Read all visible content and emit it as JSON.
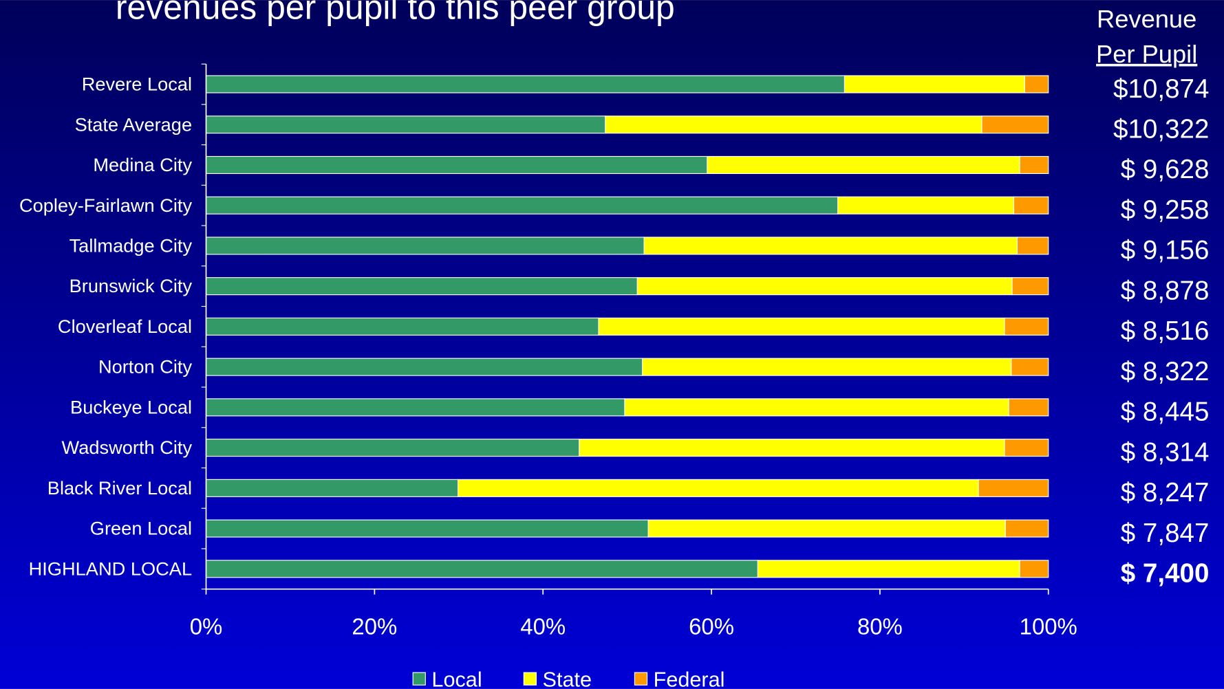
{
  "chart_data": {
    "type": "stacked_bar_horizontal",
    "title": "revenues per pupil to this peer group",
    "categories": [
      "Revere Local",
      "State Average",
      "Medina City",
      "Copley-Fairlawn City",
      "Tallmadge City",
      "Brunswick City",
      "Cloverleaf Local",
      "Norton City",
      "Buckeye Local",
      "Wadsworth City",
      "Black River Local",
      "Green Local",
      "HIGHLAND LOCAL"
    ],
    "series": [
      {
        "name": "Local",
        "color": "#339966",
        "values": [
          75.8,
          47.4,
          59.5,
          75.0,
          52.0,
          51.2,
          46.6,
          51.8,
          49.7,
          44.3,
          29.9,
          52.5,
          65.5
        ]
      },
      {
        "name": "State",
        "color": "#ffff00",
        "values": [
          21.4,
          44.7,
          37.1,
          20.9,
          44.3,
          44.5,
          48.2,
          43.8,
          45.6,
          50.5,
          61.8,
          42.4,
          31.1
        ]
      },
      {
        "name": "Federal",
        "color": "#ff9900",
        "values": [
          2.8,
          7.9,
          3.4,
          4.1,
          3.7,
          4.3,
          5.2,
          4.4,
          4.7,
          5.2,
          8.3,
          5.1,
          3.4
        ]
      }
    ],
    "xlim": [
      0,
      100
    ],
    "xticks": [
      {
        "value": 0,
        "label": "0%"
      },
      {
        "value": 20,
        "label": "20%"
      },
      {
        "value": 40,
        "label": "40%"
      },
      {
        "value": 60,
        "label": "60%"
      },
      {
        "value": 80,
        "label": "80%"
      },
      {
        "value": 100,
        "label": "100%"
      }
    ],
    "legend": "bottom",
    "revenue_per_pupil": {
      "heading": [
        "Revenue",
        "Per Pupil"
      ],
      "labels": [
        "$10,874",
        "$10,322",
        "$ 9,628",
        "$ 9,258",
        "$ 9,156",
        "$ 8,878",
        "$ 8,516",
        "$ 8,322",
        "$ 8,445",
        "$ 8,314",
        "$ 8,247",
        "$ 7,847",
        "$ 7,400"
      ]
    }
  }
}
